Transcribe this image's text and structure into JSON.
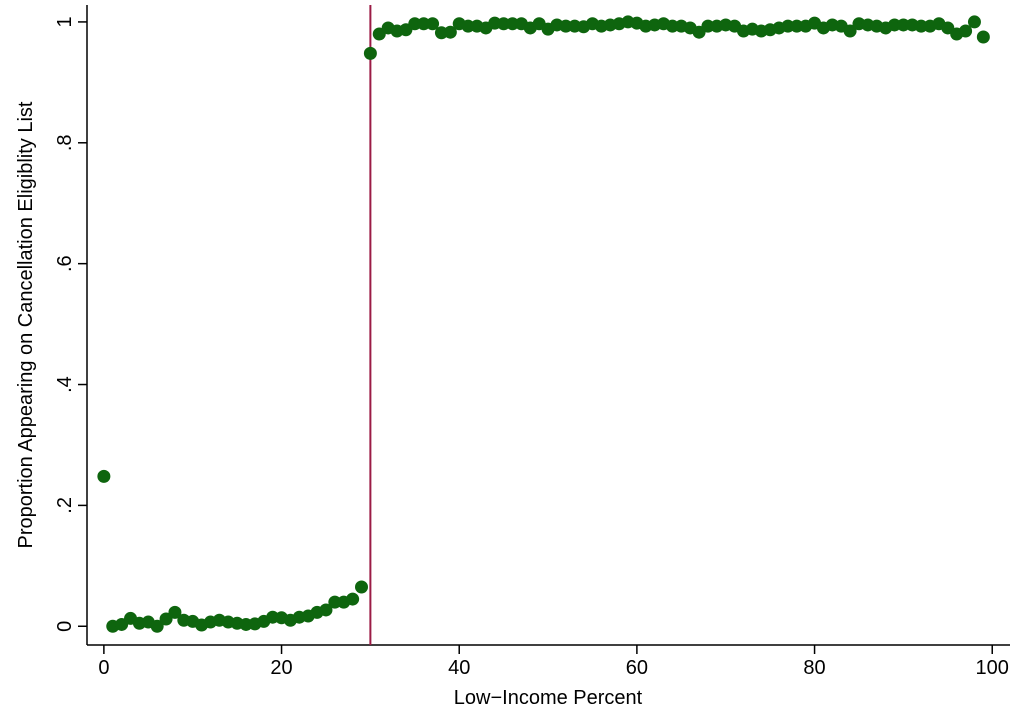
{
  "chart_data": {
    "type": "scatter",
    "x_label": "Low−Income Percent",
    "y_label": "Proportion Appearing on Cancellation Eligiblity List",
    "x": [
      0,
      1,
      2,
      3,
      4,
      5,
      6,
      7,
      8,
      9,
      10,
      11,
      12,
      13,
      14,
      15,
      16,
      17,
      18,
      19,
      20,
      21,
      22,
      23,
      24,
      25,
      26,
      27,
      28,
      29,
      30,
      31,
      32,
      33,
      34,
      35,
      36,
      37,
      38,
      39,
      40,
      41,
      42,
      43,
      44,
      45,
      46,
      47,
      48,
      49,
      50,
      51,
      52,
      53,
      54,
      55,
      56,
      57,
      58,
      59,
      60,
      61,
      62,
      63,
      64,
      65,
      66,
      67,
      68,
      69,
      70,
      71,
      72,
      73,
      74,
      75,
      76,
      77,
      78,
      79,
      80,
      81,
      82,
      83,
      84,
      85,
      86,
      87,
      88,
      89,
      90,
      91,
      92,
      93,
      94,
      95,
      96,
      97,
      98,
      99
    ],
    "y": [
      0.248,
      0,
      0.003,
      0.013,
      0.005,
      0.007,
      0,
      0.012,
      0.023,
      0.01,
      0.008,
      0.002,
      0.007,
      0.01,
      0.007,
      0.005,
      0.003,
      0.004,
      0.008,
      0.015,
      0.014,
      0.01,
      0.015,
      0.017,
      0.023,
      0.027,
      0.04,
      0.04,
      0.045,
      0.065,
      0.948,
      0.98,
      0.99,
      0.985,
      0.987,
      0.997,
      0.997,
      0.997,
      0.982,
      0.983,
      0.997,
      0.993,
      0.993,
      0.99,
      0.998,
      0.997,
      0.997,
      0.997,
      0.99,
      0.997,
      0.988,
      0.995,
      0.993,
      0.993,
      0.992,
      0.997,
      0.993,
      0.995,
      0.997,
      1.0,
      0.998,
      0.993,
      0.995,
      0.997,
      0.993,
      0.993,
      0.99,
      0.983,
      0.993,
      0.993,
      0.995,
      0.993,
      0.985,
      0.988,
      0.985,
      0.987,
      0.99,
      0.993,
      0.993,
      0.993,
      0.998,
      0.99,
      0.995,
      0.993,
      0.985,
      0.997,
      0.995,
      0.993,
      0.99,
      0.995,
      0.995,
      0.995,
      0.993,
      0.993,
      0.997,
      0.99,
      0.98,
      0.985,
      1.0,
      0.975
    ],
    "color": "#0e650e",
    "reference_line": {
      "x": 30,
      "color": "#9b1b45"
    },
    "xlim": [
      -1.9,
      102
    ],
    "ylim": [
      -0.031,
      1.028
    ],
    "xticks": [
      0,
      20,
      40,
      60,
      80,
      100
    ],
    "yticks": [
      0,
      {
        "value": 0.2,
        "label": ".2"
      },
      {
        "value": 0.4,
        "label": ".4"
      },
      {
        "value": 0.6,
        "label": ".6"
      },
      {
        "value": 0.8,
        "label": ".8"
      },
      1
    ]
  }
}
